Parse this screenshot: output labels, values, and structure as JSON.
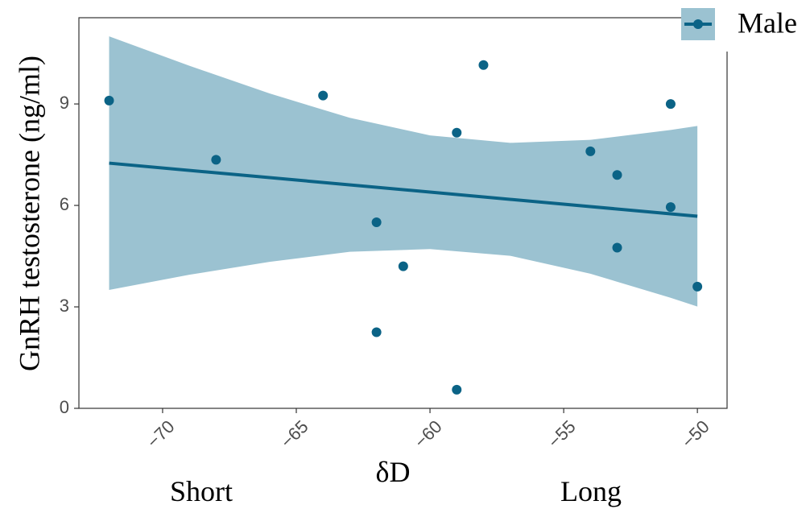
{
  "chart_data": {
    "type": "scatter",
    "y_label": "GnRH testosterone (ng/ml)",
    "x_label": "δD",
    "annotations": [
      "Short",
      "Long"
    ],
    "xlim": [
      -73.13,
      -48.89
    ],
    "ylim": [
      0,
      11.55
    ],
    "xticks": [
      {
        "value": -70,
        "label": "−70"
      },
      {
        "value": -65,
        "label": "−65"
      },
      {
        "value": -60,
        "label": "−60"
      },
      {
        "value": -55,
        "label": "−55"
      },
      {
        "value": -50,
        "label": "−50"
      }
    ],
    "yticks": [
      0,
      3,
      6,
      9
    ],
    "grid": false,
    "legend": "top-right",
    "series": [
      {
        "name": "Male",
        "color": "#0b6386",
        "x": [
          -72,
          -68,
          -64,
          -62,
          -62,
          -61,
          -59,
          -59,
          -58,
          -54,
          -53,
          -53,
          -51,
          -51,
          -50
        ],
        "values": [
          9.1,
          7.35,
          9.25,
          5.5,
          2.25,
          4.2,
          8.15,
          0.55,
          10.15,
          7.6,
          6.9,
          4.75,
          9.0,
          5.95,
          3.6
        ]
      }
    ],
    "fit_line": {
      "x": [
        -72,
        -50
      ],
      "y": [
        7.25,
        5.68
      ]
    },
    "band": {
      "color": "#9bc2d1",
      "x": [
        -72,
        -69,
        -66,
        -63,
        -60,
        -57,
        -54,
        -51,
        -50
      ],
      "upper": [
        11.0,
        10.13,
        9.31,
        8.59,
        8.07,
        7.85,
        7.94,
        8.23,
        8.35
      ],
      "lower": [
        3.5,
        3.95,
        4.33,
        4.63,
        4.71,
        4.51,
        3.98,
        3.27,
        3.01
      ]
    }
  }
}
